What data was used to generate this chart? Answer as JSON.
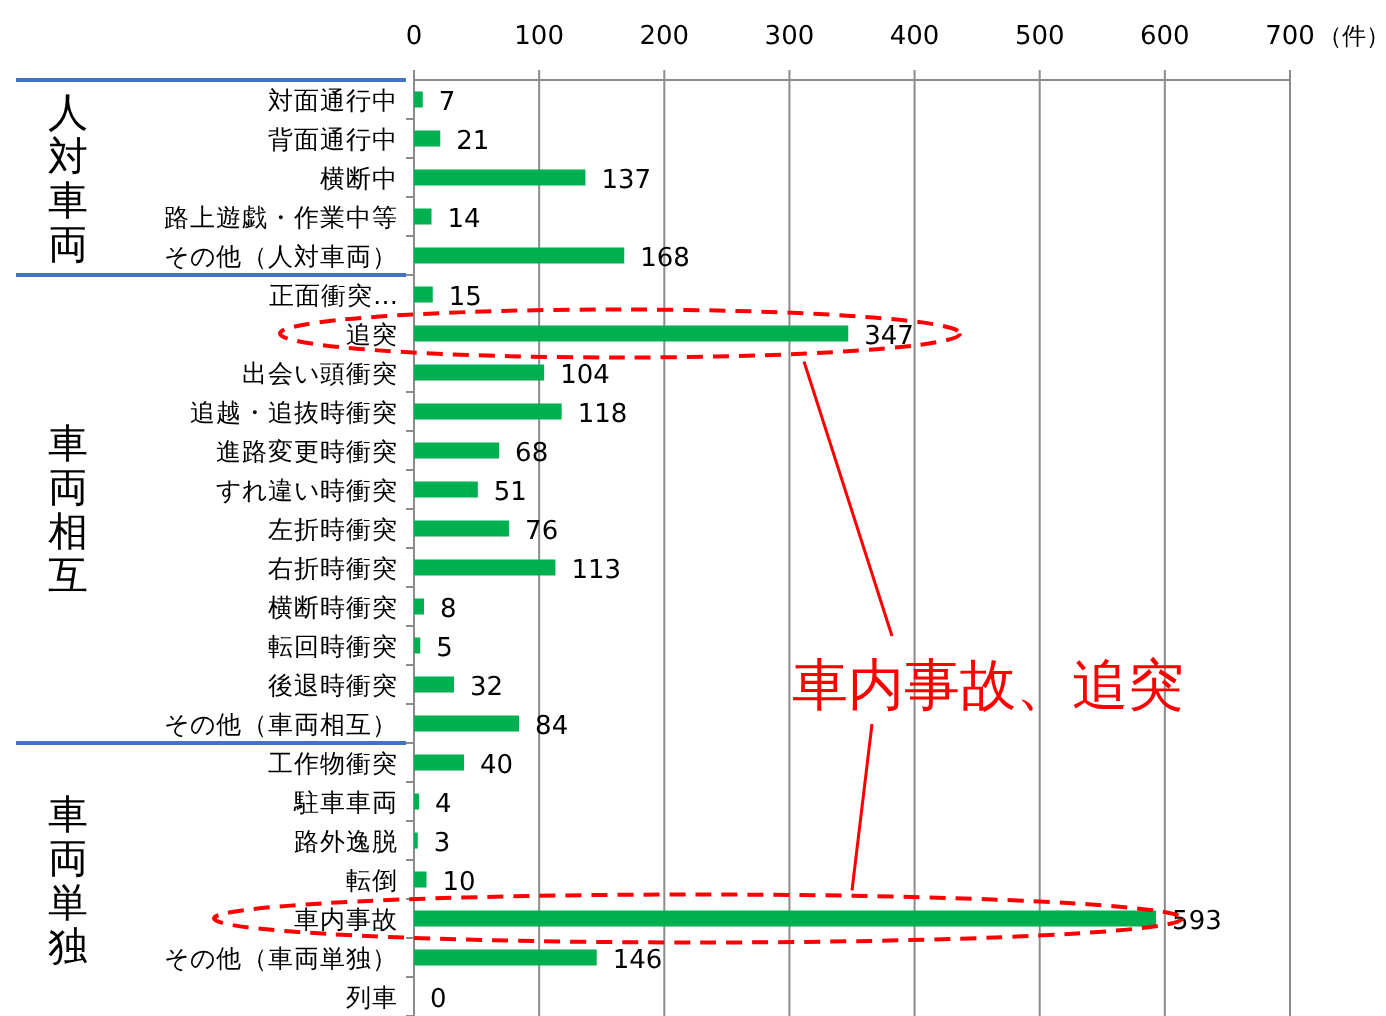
{
  "chart_data": {
    "type": "bar",
    "orientation": "horizontal",
    "xlabel": "（件）",
    "categories": [
      "対面通行中",
      "背面通行中",
      "横断中",
      "路上遊戯・作業中等",
      "その他（人対車両）",
      "正面衝突…",
      "追突",
      "出会い頭衝突",
      "追越・追抜時衝突",
      "進路変更時衝突",
      "すれ違い時衝突",
      "左折時衝突",
      "右折時衝突",
      "横断時衝突",
      "転回時衝突",
      "後退時衝突",
      "その他（車両相互）",
      "工作物衝突",
      "駐車車両",
      "路外逸脱",
      "転倒",
      "車内事故",
      "その他（車両単独）",
      "列車"
    ],
    "values": [
      7,
      21,
      137,
      14,
      168,
      15,
      347,
      104,
      118,
      68,
      51,
      76,
      113,
      8,
      5,
      32,
      84,
      40,
      4,
      3,
      10,
      593,
      146,
      0
    ],
    "color": "#00b050",
    "data_labels": true,
    "xlim": [
      0,
      700
    ],
    "xticks": [
      0,
      100,
      200,
      300,
      400,
      500,
      600,
      700
    ],
    "grid": "x",
    "annotations": [
      "人対車両",
      "車両相互",
      "車両単独",
      "車内事故、追突"
    ]
  }
}
